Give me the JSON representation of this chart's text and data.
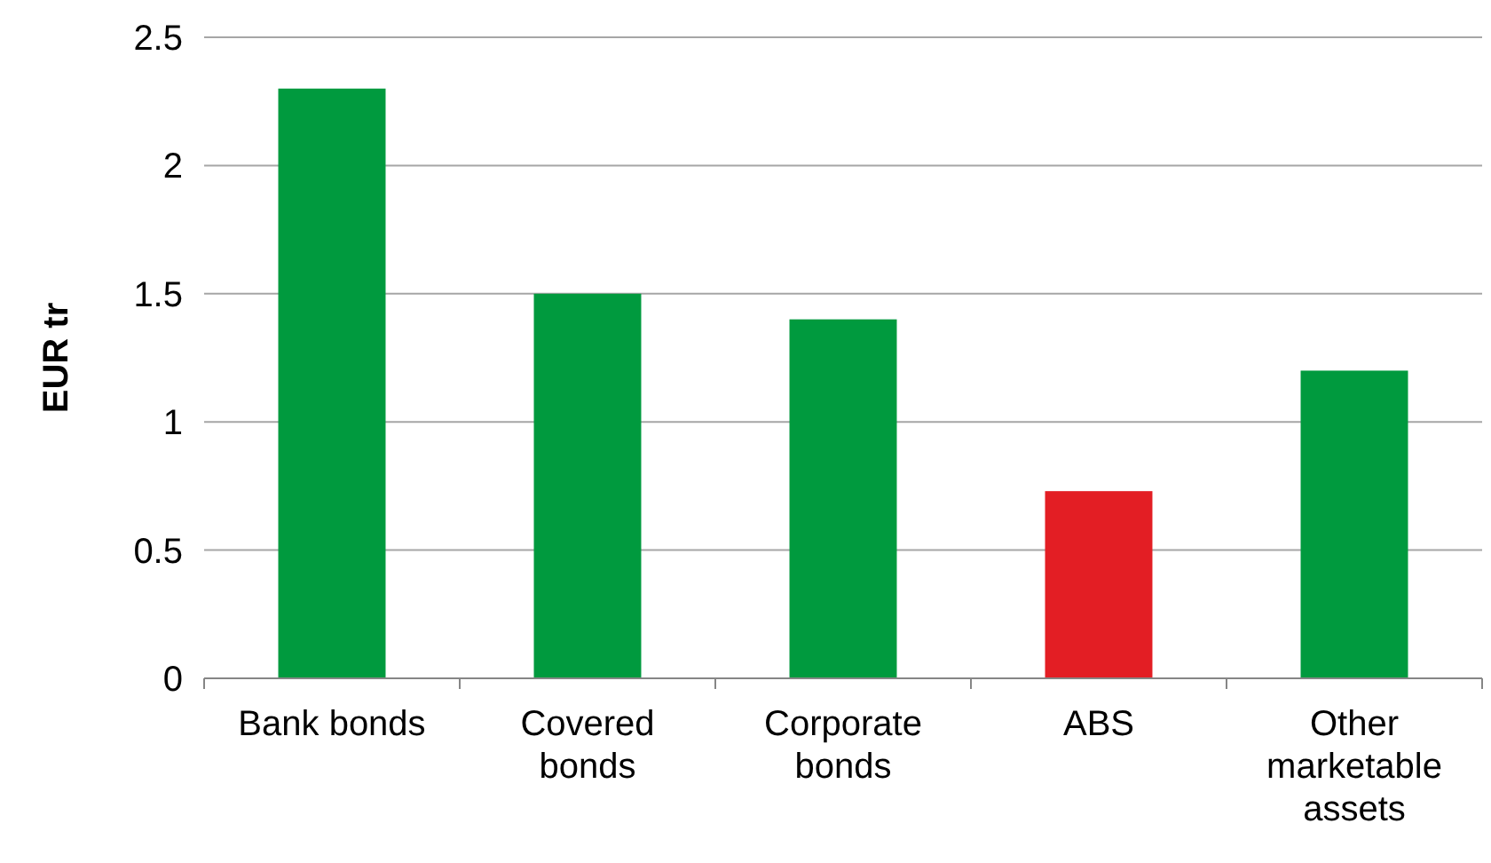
{
  "chart_data": {
    "type": "bar",
    "ylabel": "EUR tr",
    "categories": [
      "Bank bonds",
      "Covered bonds",
      "Corporate bonds",
      "ABS",
      "Other marketable assets"
    ],
    "values": [
      2.3,
      1.5,
      1.4,
      0.73,
      1.2
    ],
    "colors": [
      "#009a3e",
      "#009a3e",
      "#009a3e",
      "#e31e24",
      "#009a3e"
    ],
    "ylim": [
      0,
      2.5
    ],
    "yticks": [
      0,
      0.5,
      1,
      1.5,
      2,
      2.5
    ],
    "grid": "y"
  }
}
